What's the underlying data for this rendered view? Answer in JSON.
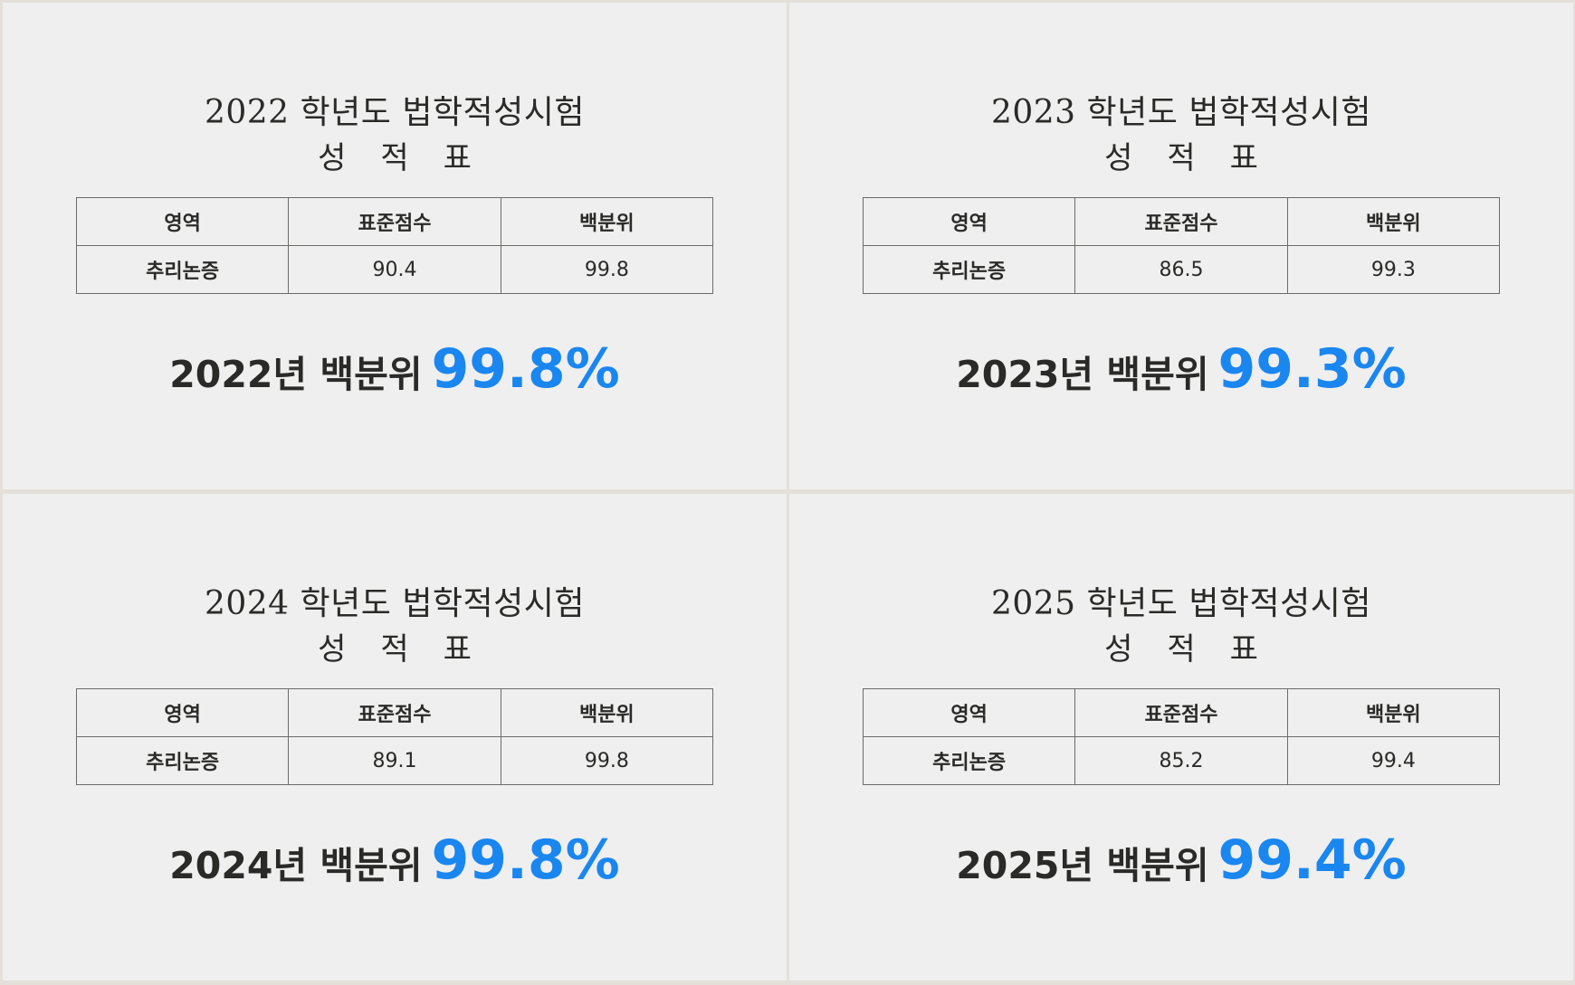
{
  "title_suffix": "학년도 법학적성시험",
  "subtitle": "성적표",
  "headers": {
    "area": "영역",
    "standard_score": "표준점수",
    "percentile": "백분위"
  },
  "cards": [
    {
      "title": "2022 학년도 법학적성시험",
      "subtitle": "성적표",
      "row": {
        "area": "추리논증",
        "standard_score": "90.4",
        "percentile": "99.8"
      },
      "result_label": "2022년 백분위",
      "result_value": "99.8%"
    },
    {
      "title": "2023 학년도 법학적성시험",
      "subtitle": "성적표",
      "row": {
        "area": "추리논증",
        "standard_score": "86.5",
        "percentile": "99.3"
      },
      "result_label": "2023년 백분위",
      "result_value": "99.3%"
    },
    {
      "title": "2024 학년도 법학적성시험",
      "subtitle": "성적표",
      "row": {
        "area": "추리논증",
        "standard_score": "89.1",
        "percentile": "99.8"
      },
      "result_label": "2024년 백분위",
      "result_value": "99.8%"
    },
    {
      "title": "2025 학년도 법학적성시험",
      "subtitle": "성적표",
      "row": {
        "area": "추리논증",
        "standard_score": "85.2",
        "percentile": "99.4"
      },
      "result_label": "2025년 백분위",
      "result_value": "99.4%"
    }
  ],
  "colors": {
    "background": "#efefef",
    "border": "#e4e0d9",
    "text": "#2a2a28",
    "accent": "#1a86f0"
  }
}
